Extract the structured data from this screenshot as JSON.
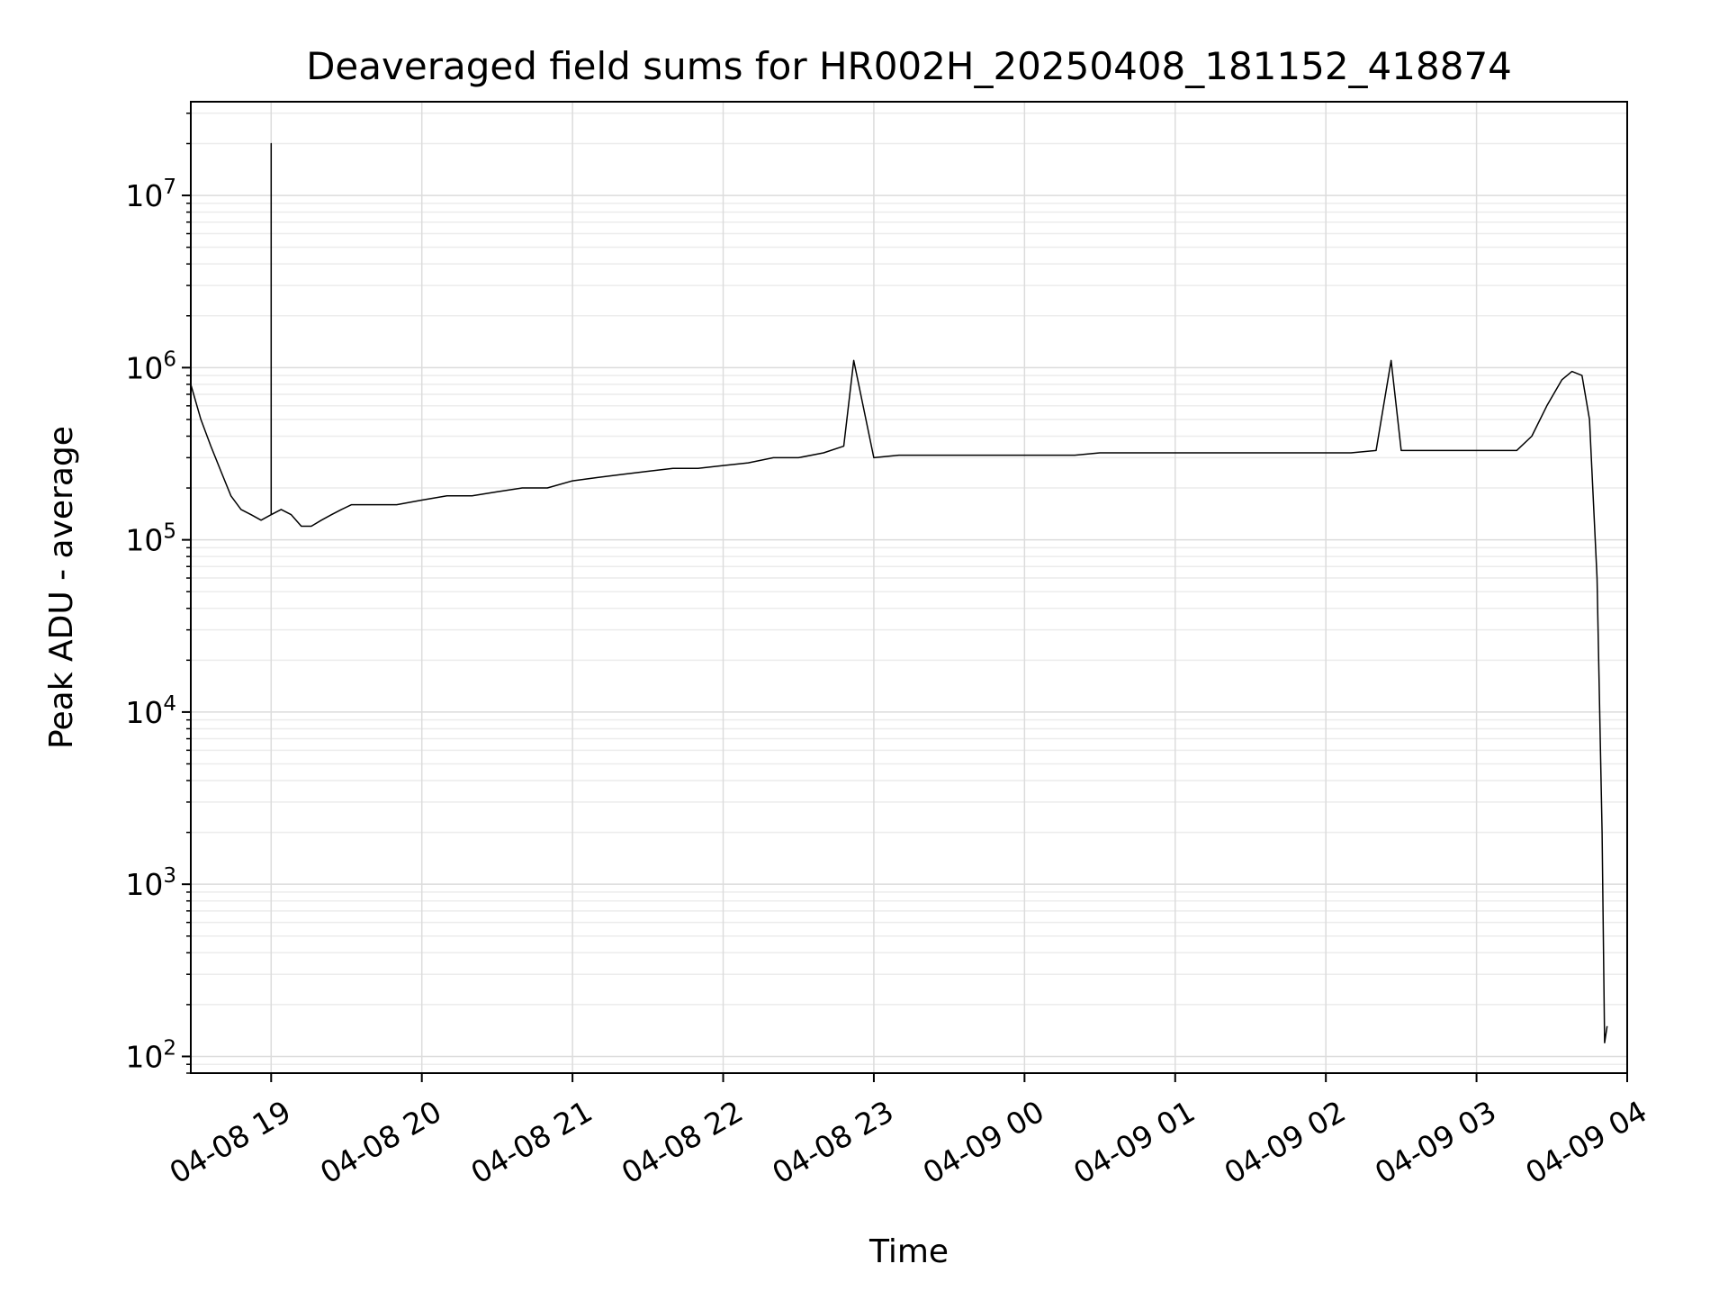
{
  "chart_data": {
    "type": "line",
    "title": "Deaveraged field sums for HR002H_20250408_181152_418874",
    "xlabel": "Time",
    "ylabel": "Peak ADU - average",
    "yscale": "log",
    "ylim": [
      80,
      35000000
    ],
    "xlim": [
      "2025-04-08 18:28",
      "2025-04-09 04:00"
    ],
    "grid": true,
    "x_ticks": [
      {
        "t": "2025-04-08 19:00",
        "label": "04-08 19"
      },
      {
        "t": "2025-04-08 20:00",
        "label": "04-08 20"
      },
      {
        "t": "2025-04-08 21:00",
        "label": "04-08 21"
      },
      {
        "t": "2025-04-08 22:00",
        "label": "04-08 22"
      },
      {
        "t": "2025-04-08 23:00",
        "label": "04-08 23"
      },
      {
        "t": "2025-04-09 00:00",
        "label": "04-09 00"
      },
      {
        "t": "2025-04-09 01:00",
        "label": "04-09 01"
      },
      {
        "t": "2025-04-09 02:00",
        "label": "04-09 02"
      },
      {
        "t": "2025-04-09 03:00",
        "label": "04-09 03"
      },
      {
        "t": "2025-04-09 04:00",
        "label": "04-09 04"
      }
    ],
    "y_ticks": [
      {
        "value": 100,
        "base": "10",
        "exp": "2"
      },
      {
        "value": 1000,
        "base": "10",
        "exp": "3"
      },
      {
        "value": 10000,
        "base": "10",
        "exp": "4"
      },
      {
        "value": 100000,
        "base": "10",
        "exp": "5"
      },
      {
        "value": 1000000,
        "base": "10",
        "exp": "6"
      },
      {
        "value": 10000000,
        "base": "10",
        "exp": "7"
      }
    ],
    "series": [
      {
        "color": "#000000",
        "x": [
          "2025-04-08 18:28",
          "2025-04-08 18:32",
          "2025-04-08 18:36",
          "2025-04-08 18:40",
          "2025-04-08 18:44",
          "2025-04-08 18:48",
          "2025-04-08 18:52",
          "2025-04-08 18:56",
          "2025-04-08 19:00",
          "2025-04-08 19:00",
          "2025-04-08 19:00",
          "2025-04-08 19:04",
          "2025-04-08 19:08",
          "2025-04-08 19:12",
          "2025-04-08 19:16",
          "2025-04-08 19:20",
          "2025-04-08 19:24",
          "2025-04-08 19:28",
          "2025-04-08 19:32",
          "2025-04-08 19:40",
          "2025-04-08 19:50",
          "2025-04-08 20:00",
          "2025-04-08 20:10",
          "2025-04-08 20:20",
          "2025-04-08 20:30",
          "2025-04-08 20:40",
          "2025-04-08 20:50",
          "2025-04-08 21:00",
          "2025-04-08 21:10",
          "2025-04-08 21:20",
          "2025-04-08 21:30",
          "2025-04-08 21:40",
          "2025-04-08 21:50",
          "2025-04-08 22:00",
          "2025-04-08 22:10",
          "2025-04-08 22:20",
          "2025-04-08 22:30",
          "2025-04-08 22:40",
          "2025-04-08 22:48",
          "2025-04-08 22:52",
          "2025-04-08 23:00",
          "2025-04-08 23:10",
          "2025-04-08 23:20",
          "2025-04-08 23:30",
          "2025-04-08 23:40",
          "2025-04-08 23:50",
          "2025-04-09 00:00",
          "2025-04-09 00:10",
          "2025-04-09 00:20",
          "2025-04-09 00:30",
          "2025-04-09 00:40",
          "2025-04-09 00:50",
          "2025-04-09 01:00",
          "2025-04-09 01:10",
          "2025-04-09 01:20",
          "2025-04-09 01:30",
          "2025-04-09 01:40",
          "2025-04-09 01:50",
          "2025-04-09 02:00",
          "2025-04-09 02:10",
          "2025-04-09 02:20",
          "2025-04-09 02:26",
          "2025-04-09 02:30",
          "2025-04-09 02:40",
          "2025-04-09 02:50",
          "2025-04-09 03:00",
          "2025-04-09 03:10",
          "2025-04-09 03:16",
          "2025-04-09 03:22",
          "2025-04-09 03:28",
          "2025-04-09 03:34",
          "2025-04-09 03:38",
          "2025-04-09 03:42",
          "2025-04-09 03:45",
          "2025-04-09 03:48",
          "2025-04-09 03:50",
          "2025-04-09 03:51",
          "2025-04-09 03:52"
        ],
        "values": [
          800000,
          500000,
          350000,
          250000,
          180000,
          150000,
          140000,
          130000,
          140000,
          20000000,
          140000,
          150000,
          140000,
          120000,
          120000,
          130000,
          140000,
          150000,
          160000,
          160000,
          160000,
          170000,
          180000,
          180000,
          190000,
          200000,
          200000,
          220000,
          230000,
          240000,
          250000,
          260000,
          260000,
          270000,
          280000,
          300000,
          300000,
          320000,
          350000,
          1100000,
          300000,
          310000,
          310000,
          310000,
          310000,
          310000,
          310000,
          310000,
          310000,
          320000,
          320000,
          320000,
          320000,
          320000,
          320000,
          320000,
          320000,
          320000,
          320000,
          320000,
          330000,
          1100000,
          330000,
          330000,
          330000,
          330000,
          330000,
          330000,
          400000,
          600000,
          850000,
          950000,
          900000,
          500000,
          60000,
          2000,
          120,
          150
        ]
      }
    ]
  }
}
